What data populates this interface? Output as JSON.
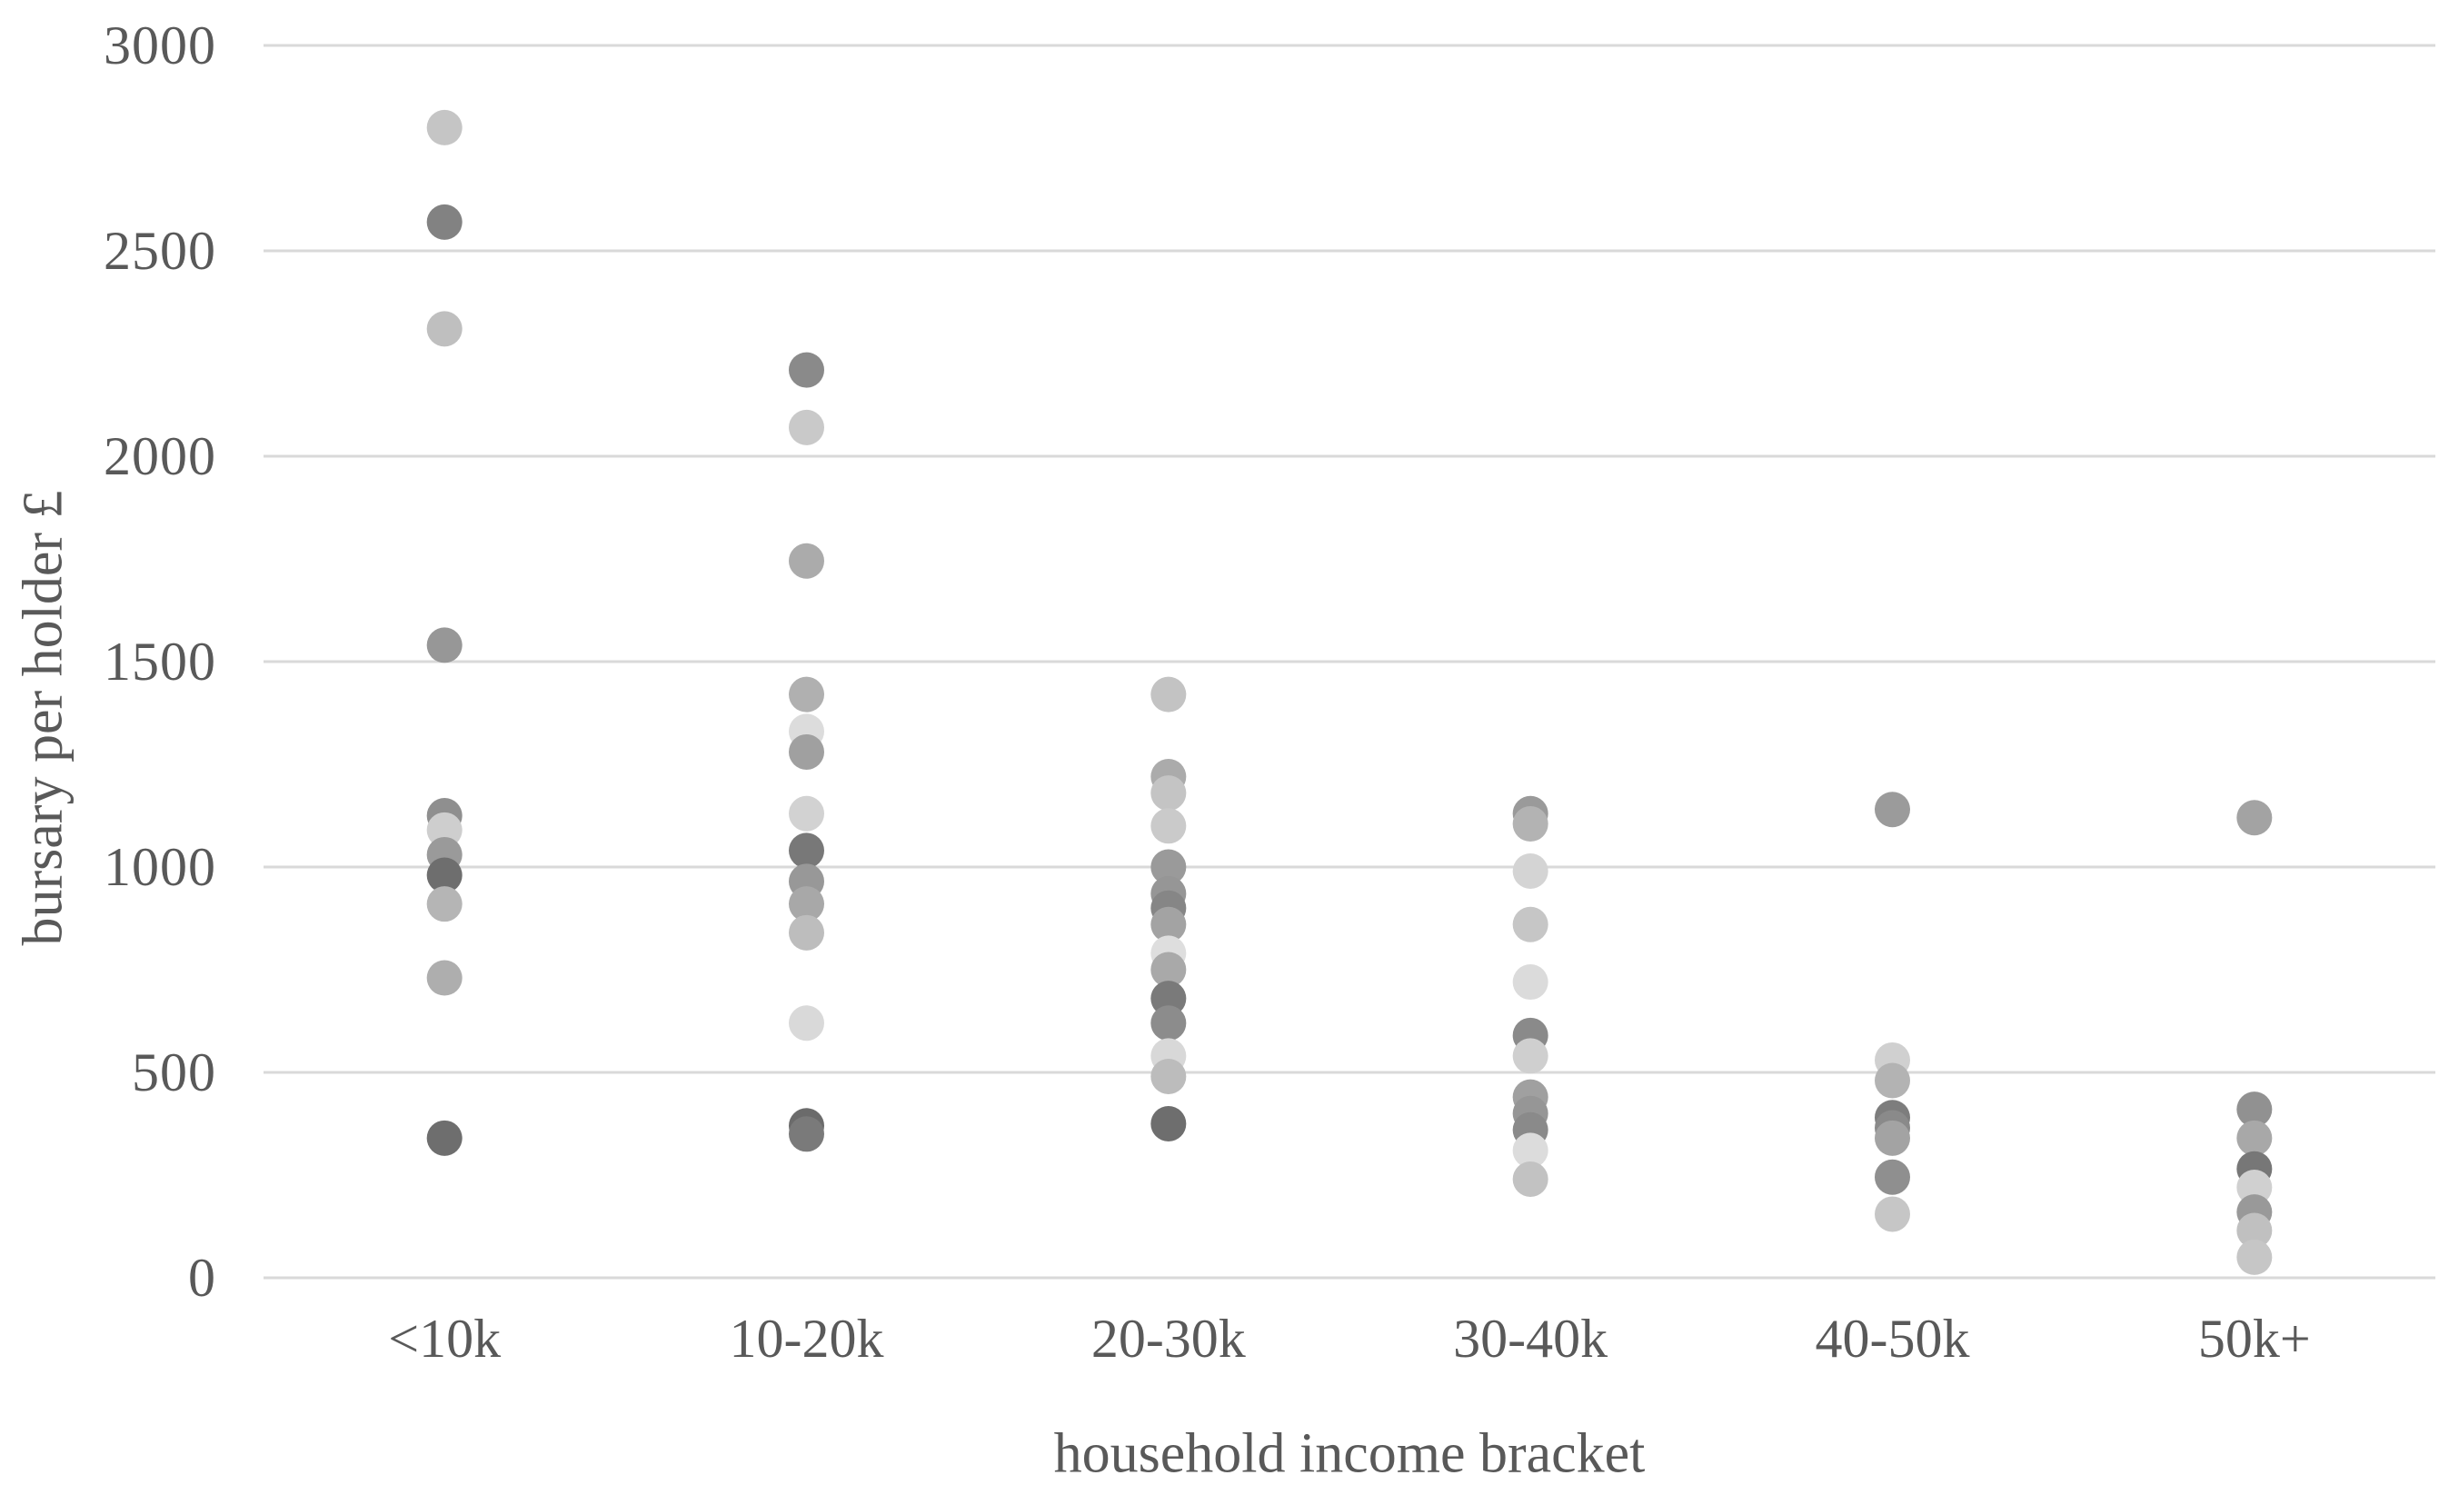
{
  "chart_data": {
    "type": "scatter",
    "title": "",
    "xlabel": "household income bracket",
    "ylabel": "bursary per holder £",
    "ylim": [
      0,
      3000
    ],
    "ytick_values": [
      3000,
      2500,
      2000,
      1500,
      1000,
      500,
      0
    ],
    "ytick_labels": [
      "3000",
      "2500",
      "2000",
      "1500",
      "1000",
      "500",
      "0"
    ],
    "grid": "horizontal-only",
    "legend_position": "none",
    "marker": "circle",
    "categories": [
      "<10k",
      "10-20k",
      "20-30k",
      "30-40k",
      "40-50k",
      "50k+"
    ],
    "series": [
      {
        "category": "<10k",
        "points": [
          {
            "value": 2800,
            "color": "#c5c5c5"
          },
          {
            "value": 2570,
            "color": "#828282"
          },
          {
            "value": 2310,
            "color": "#bfbfbf"
          },
          {
            "value": 1540,
            "color": "#979797"
          },
          {
            "value": 1125,
            "color": "#8f8f8f"
          },
          {
            "value": 1090,
            "color": "#cecece"
          },
          {
            "value": 1030,
            "color": "#9a9a9a"
          },
          {
            "value": 980,
            "color": "#6e6e6e"
          },
          {
            "value": 910,
            "color": "#b5b5b5"
          },
          {
            "value": 730,
            "color": "#aeaeae"
          },
          {
            "value": 340,
            "color": "#6e6e6e"
          }
        ]
      },
      {
        "category": "10-20k",
        "points": [
          {
            "value": 2210,
            "color": "#8a8a8a"
          },
          {
            "value": 2070,
            "color": "#c9c9c9"
          },
          {
            "value": 1745,
            "color": "#ababab"
          },
          {
            "value": 1420,
            "color": "#b0b0b0"
          },
          {
            "value": 1330,
            "color": "#dcdcdc"
          },
          {
            "value": 1280,
            "color": "#a0a0a0"
          },
          {
            "value": 1130,
            "color": "#d2d2d2"
          },
          {
            "value": 1040,
            "color": "#787878"
          },
          {
            "value": 965,
            "color": "#989898"
          },
          {
            "value": 910,
            "color": "#a8a8a8"
          },
          {
            "value": 840,
            "color": "#bdbdbd"
          },
          {
            "value": 620,
            "color": "#d9d9d9"
          },
          {
            "value": 370,
            "color": "#6b6b6b"
          },
          {
            "value": 350,
            "color": "#7a7a7a"
          }
        ]
      },
      {
        "category": "20-30k",
        "points": [
          {
            "value": 1420,
            "color": "#c3c3c3"
          },
          {
            "value": 1220,
            "color": "#ababab"
          },
          {
            "value": 1180,
            "color": "#c4c4c4"
          },
          {
            "value": 1100,
            "color": "#cacaca"
          },
          {
            "value": 1000,
            "color": "#9a9a9a"
          },
          {
            "value": 935,
            "color": "#969696"
          },
          {
            "value": 900,
            "color": "#868686"
          },
          {
            "value": 860,
            "color": "#a3a3a3"
          },
          {
            "value": 790,
            "color": "#dedede"
          },
          {
            "value": 750,
            "color": "#a9a9a9"
          },
          {
            "value": 680,
            "color": "#7a7a7a"
          },
          {
            "value": 620,
            "color": "#8c8c8c"
          },
          {
            "value": 540,
            "color": "#d8d8d8"
          },
          {
            "value": 490,
            "color": "#bcbcbc"
          },
          {
            "value": 375,
            "color": "#6e6e6e"
          }
        ]
      },
      {
        "category": "30-40k",
        "points": [
          {
            "value": 1130,
            "color": "#9a9a9a"
          },
          {
            "value": 1105,
            "color": "#b3b3b3"
          },
          {
            "value": 990,
            "color": "#d4d4d4"
          },
          {
            "value": 860,
            "color": "#c6c6c6"
          },
          {
            "value": 720,
            "color": "#dbdbdb"
          },
          {
            "value": 590,
            "color": "#8a8a8a"
          },
          {
            "value": 540,
            "color": "#cfcfcf"
          },
          {
            "value": 440,
            "color": "#a0a0a0"
          },
          {
            "value": 400,
            "color": "#969696"
          },
          {
            "value": 360,
            "color": "#8a8a8a"
          },
          {
            "value": 310,
            "color": "#dcdcdc"
          },
          {
            "value": 240,
            "color": "#c2c2c2"
          }
        ]
      },
      {
        "category": "40-50k",
        "points": [
          {
            "value": 1140,
            "color": "#9b9b9b"
          },
          {
            "value": 530,
            "color": "#d0d0d0"
          },
          {
            "value": 480,
            "color": "#b3b3b3"
          },
          {
            "value": 390,
            "color": "#7d7d7d"
          },
          {
            "value": 365,
            "color": "#8a8a8a"
          },
          {
            "value": 340,
            "color": "#a3a3a3"
          },
          {
            "value": 245,
            "color": "#8f8f8f"
          },
          {
            "value": 155,
            "color": "#c6c6c6"
          }
        ]
      },
      {
        "category": "50k+",
        "points": [
          {
            "value": 1120,
            "color": "#a3a3a3"
          },
          {
            "value": 410,
            "color": "#919191"
          },
          {
            "value": 340,
            "color": "#a8a8a8"
          },
          {
            "value": 265,
            "color": "#777777"
          },
          {
            "value": 220,
            "color": "#d0d0d0"
          },
          {
            "value": 160,
            "color": "#999999"
          },
          {
            "value": 115,
            "color": "#c0c0c0"
          },
          {
            "value": 50,
            "color": "#c6c6c6"
          }
        ]
      }
    ],
    "colors": {
      "text": "#595959",
      "gridline": "#d9d9d9",
      "background": "#ffffff"
    }
  }
}
